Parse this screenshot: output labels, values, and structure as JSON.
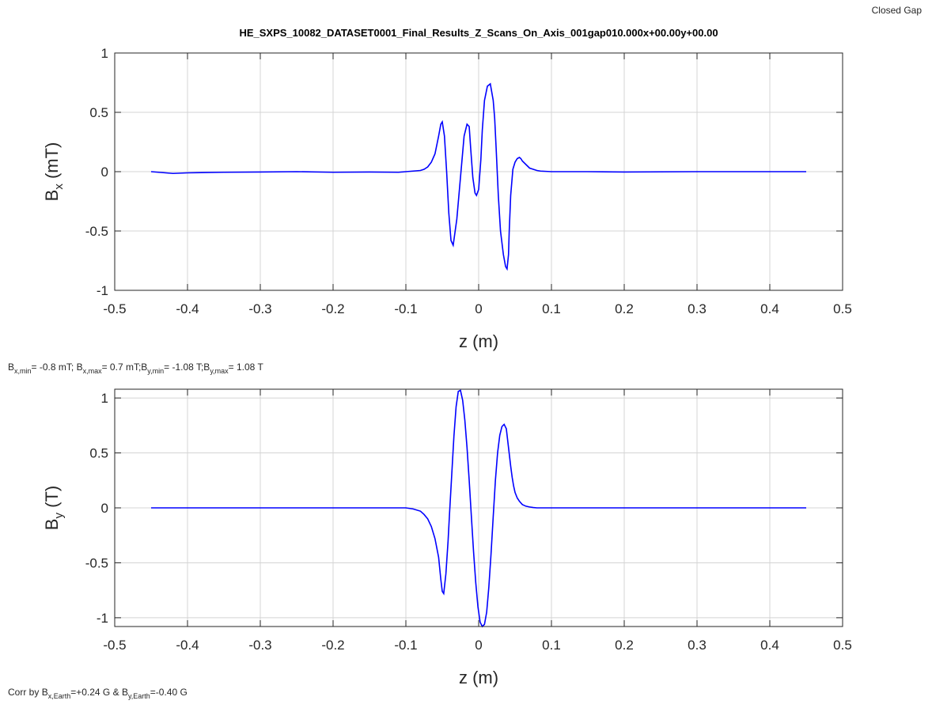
{
  "corner_label": "Closed Gap",
  "info_line": {
    "bxmin_sym": "B",
    "bxmin_sub": "x,min",
    "bxmin_val": "= -0.8 mT; ",
    "bxmax_sym": "B",
    "bxmax_sub": "x,max",
    "bxmax_val": "= 0.7 mT;",
    "bymin_sym": "B",
    "bymin_sub": "y,min",
    "bymin_val": "= -1.08 T;",
    "bymax_sym": "B",
    "bymax_sub": "y,max",
    "bymax_val": "= 1.08 T"
  },
  "footer": {
    "prefix": "Corr by ",
    "bx_sym": "B",
    "bx_sub": "x,Earth",
    "bx_val": "=+0.24 G & ",
    "by_sym": "B",
    "by_sub": "y,Earth",
    "by_val": "=-0.40 G"
  },
  "colors": {
    "line": "#0000ff",
    "grid": "#d4d4d4",
    "axis": "#262626"
  },
  "chart_data": [
    {
      "type": "line",
      "title": "HE_SXPS_10082_DATASET0001_Final_Results_Z_Scans_On_Axis_001gap010.000x+00.00y+00.00",
      "xlabel": "z (m)",
      "ylabel_sym": "B",
      "ylabel_sub": "x",
      "ylabel_unit": " (mT)",
      "xlim": [
        -0.5,
        0.5
      ],
      "ylim": [
        -1,
        1
      ],
      "xticks": [
        -0.5,
        -0.4,
        -0.3,
        -0.2,
        -0.1,
        0,
        0.1,
        0.2,
        0.3,
        0.4,
        0.5
      ],
      "xtick_labels": [
        "-0.5",
        "-0.4",
        "-0.3",
        "-0.2",
        "-0.1",
        "0",
        "0.1",
        "0.2",
        "0.3",
        "0.4",
        "0.5"
      ],
      "yticks": [
        -1,
        -0.5,
        0,
        0.5,
        1
      ],
      "ytick_labels": [
        "-1",
        "-0.5",
        "0",
        "0.5",
        "1"
      ],
      "grid": true,
      "series": [
        {
          "x": [
            -0.45,
            -0.42,
            -0.4,
            -0.35,
            -0.3,
            -0.25,
            -0.2,
            -0.15,
            -0.11,
            -0.1,
            -0.09,
            -0.08,
            -0.075,
            -0.07,
            -0.065,
            -0.06,
            -0.055,
            -0.052,
            -0.05,
            -0.047,
            -0.044,
            -0.041,
            -0.038,
            -0.035,
            -0.03,
            -0.025,
            -0.02,
            -0.016,
            -0.013,
            -0.011,
            -0.008,
            -0.005,
            -0.003,
            0.0,
            0.003,
            0.005,
            0.008,
            0.012,
            0.016,
            0.02,
            0.022,
            0.024,
            0.027,
            0.03,
            0.034,
            0.037,
            0.039,
            0.041,
            0.042,
            0.044,
            0.047,
            0.05,
            0.053,
            0.056,
            0.058,
            0.06,
            0.065,
            0.07,
            0.075,
            0.08,
            0.085,
            0.1,
            0.15,
            0.2,
            0.3,
            0.4,
            0.45
          ],
          "y": [
            0.0,
            -0.015,
            -0.01,
            -0.005,
            -0.003,
            0.0,
            -0.005,
            -0.003,
            -0.005,
            0.0,
            0.005,
            0.01,
            0.02,
            0.04,
            0.08,
            0.15,
            0.3,
            0.4,
            0.42,
            0.3,
            0.0,
            -0.35,
            -0.58,
            -0.62,
            -0.4,
            -0.05,
            0.3,
            0.4,
            0.38,
            0.2,
            -0.05,
            -0.18,
            -0.2,
            -0.15,
            0.1,
            0.35,
            0.6,
            0.72,
            0.74,
            0.6,
            0.45,
            0.2,
            -0.2,
            -0.5,
            -0.7,
            -0.8,
            -0.82,
            -0.7,
            -0.5,
            -0.2,
            0.02,
            0.08,
            0.11,
            0.12,
            0.11,
            0.09,
            0.06,
            0.03,
            0.02,
            0.01,
            0.005,
            0.0,
            0.0,
            -0.003,
            0.0,
            0.0,
            0.0
          ]
        }
      ]
    },
    {
      "type": "line",
      "title": "",
      "xlabel": "z (m)",
      "ylabel_sym": "B",
      "ylabel_sub": "y",
      "ylabel_unit": " (T)",
      "xlim": [
        -0.5,
        0.5
      ],
      "ylim": [
        -1.08,
        1.08
      ],
      "xticks": [
        -0.5,
        -0.4,
        -0.3,
        -0.2,
        -0.1,
        0,
        0.1,
        0.2,
        0.3,
        0.4,
        0.5
      ],
      "xtick_labels": [
        "-0.5",
        "-0.4",
        "-0.3",
        "-0.2",
        "-0.1",
        "0",
        "0.1",
        "0.2",
        "0.3",
        "0.4",
        "0.5"
      ],
      "yticks": [
        -1,
        -0.5,
        0,
        0.5,
        1
      ],
      "ytick_labels": [
        "-1",
        "-0.5",
        "0",
        "0.5",
        "1"
      ],
      "grid": true,
      "series": [
        {
          "x": [
            -0.45,
            -0.3,
            -0.2,
            -0.1,
            -0.09,
            -0.08,
            -0.075,
            -0.07,
            -0.065,
            -0.06,
            -0.055,
            -0.052,
            -0.05,
            -0.048,
            -0.045,
            -0.042,
            -0.04,
            -0.037,
            -0.034,
            -0.031,
            -0.028,
            -0.025,
            -0.022,
            -0.019,
            -0.016,
            -0.013,
            -0.01,
            -0.007,
            -0.004,
            -0.001,
            0.002,
            0.005,
            0.008,
            0.011,
            0.014,
            0.017,
            0.02,
            0.023,
            0.026,
            0.029,
            0.032,
            0.035,
            0.038,
            0.041,
            0.044,
            0.046,
            0.048,
            0.05,
            0.053,
            0.056,
            0.06,
            0.065,
            0.07,
            0.075,
            0.08,
            0.09,
            0.1,
            0.2,
            0.3,
            0.45
          ],
          "y": [
            0.0,
            0.0,
            0.0,
            0.0,
            -0.01,
            -0.03,
            -0.06,
            -0.1,
            -0.17,
            -0.28,
            -0.45,
            -0.65,
            -0.76,
            -0.78,
            -0.6,
            -0.3,
            -0.05,
            0.3,
            0.65,
            0.92,
            1.06,
            1.07,
            0.98,
            0.8,
            0.55,
            0.25,
            -0.08,
            -0.4,
            -0.68,
            -0.9,
            -1.04,
            -1.08,
            -1.06,
            -0.95,
            -0.72,
            -0.42,
            -0.08,
            0.25,
            0.5,
            0.66,
            0.74,
            0.76,
            0.72,
            0.55,
            0.38,
            0.28,
            0.2,
            0.14,
            0.09,
            0.06,
            0.03,
            0.015,
            0.008,
            0.003,
            0.0,
            0.0,
            0.0,
            0.0,
            0.0,
            0.0
          ]
        }
      ]
    }
  ]
}
